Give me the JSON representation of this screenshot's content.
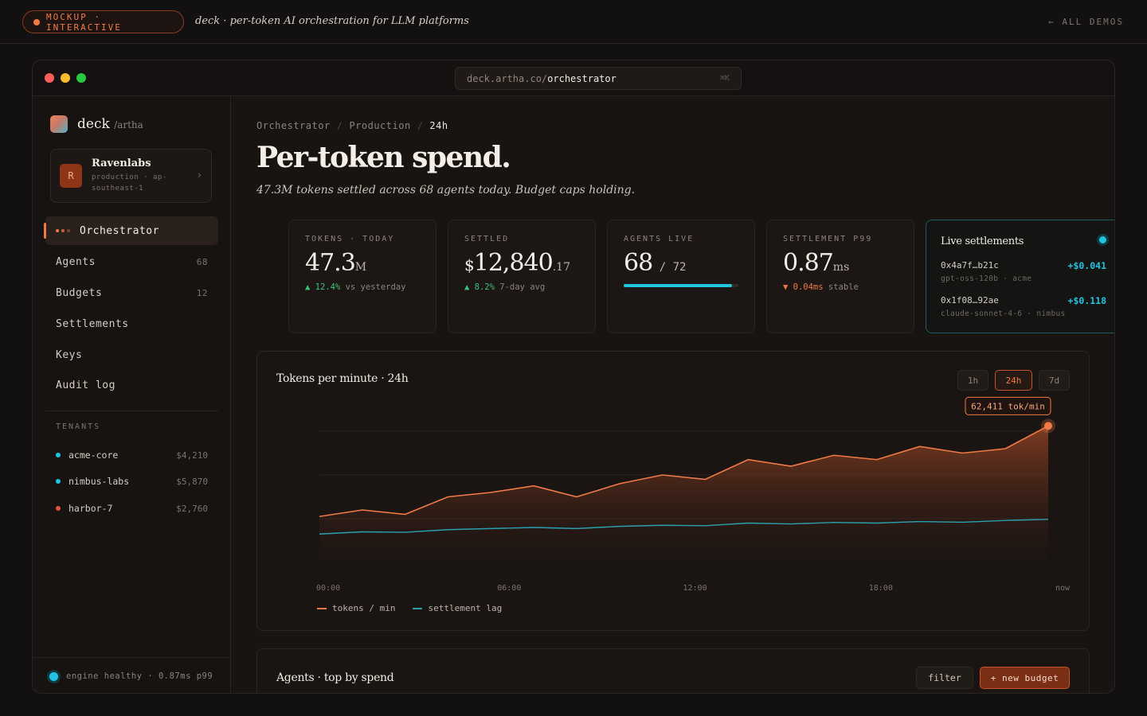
{
  "banner": {
    "pill_label": "MOCKUP · INTERACTIVE",
    "tagline": "deck · per-token AI orchestration for LLM platforms",
    "all_demos": "← ALL DEMOS"
  },
  "browser": {
    "url_host": "deck.artha.co/",
    "url_path": "orchestrator",
    "shortcut": "⌘K"
  },
  "sidebar": {
    "logo": "deck",
    "logo_sub": "/artha",
    "tenant": {
      "initial": "R",
      "name": "Ravenlabs",
      "env": "production · ap-southeast-1"
    },
    "nav": [
      {
        "label": "Orchestrator",
        "count": ""
      },
      {
        "label": "Agents",
        "count": "68"
      },
      {
        "label": "Budgets",
        "count": "12"
      },
      {
        "label": "Settlements",
        "count": ""
      },
      {
        "label": "Keys",
        "count": ""
      },
      {
        "label": "Audit log",
        "count": ""
      }
    ],
    "tenants_heading": "TENANTS",
    "tenants": [
      {
        "name": "acme-core",
        "amount": "$4,210",
        "color": "#22c3e0"
      },
      {
        "name": "nimbus-labs",
        "amount": "$5,870",
        "color": "#22c3e0"
      },
      {
        "name": "harbor-7",
        "amount": "$2,760",
        "color": "#e0553a"
      }
    ],
    "footer": "engine healthy · 0.87ms p99"
  },
  "main": {
    "breadcrumb": [
      "Orchestrator",
      "Production",
      "24h"
    ],
    "title": "Per-token spend.",
    "subtitle": "47.3M tokens settled across 68 agents today. Budget caps holding.",
    "cards": {
      "tokens": {
        "label": "TOKENS · TODAY",
        "value": "47.3",
        "unit": "M",
        "delta": "▲ 12.4%",
        "delta_note": "vs yesterday"
      },
      "settled": {
        "label": "SETTLED",
        "currency": "$",
        "value": "12,840",
        "cents": ".17",
        "delta": "▲ 8.2%",
        "delta_note": "7-day avg"
      },
      "agents": {
        "label": "AGENTS LIVE",
        "value": "68",
        "total": "/ 72",
        "fill": 0.944
      },
      "p99": {
        "label": "SETTLEMENT P99",
        "value": "0.87",
        "unit": "ms",
        "delta": "▼ 0.04ms",
        "delta_note": "stable"
      }
    },
    "live": {
      "title": "Live settlements",
      "rows": [
        {
          "hash": "0x4a7f…b21c",
          "amount": "+$0.041",
          "meta": "gpt-oss-120b · acme"
        },
        {
          "hash": "0x1f08…92ae",
          "amount": "+$0.118",
          "meta": "claude-sonnet-4-6 · nimbus"
        }
      ]
    },
    "chart": {
      "title": "Tokens per minute · 24h",
      "ranges": [
        "1h",
        "24h",
        "7d"
      ],
      "active_range": "24h",
      "tooltip": "62,411 tok/min",
      "legend": [
        "tokens / min",
        "settlement lag"
      ]
    },
    "agents_section": {
      "title": "Agents · top by spend",
      "filter_label": "filter",
      "new_budget_label": "+ new budget"
    }
  },
  "colors": {
    "accent": "#f07a45",
    "cyan": "#22c3e0",
    "background": "#121010"
  },
  "chart_data": {
    "type": "area",
    "title": "Tokens per minute · 24h",
    "x_ticks": [
      "00:00",
      "06:00",
      "12:00",
      "18:00",
      "now"
    ],
    "ylim": [
      0,
      80000
    ],
    "grid": true,
    "legend_position": "bottom-left",
    "series": [
      {
        "name": "tokens / min",
        "color": "#f07a45",
        "values": [
          21000,
          24000,
          22000,
          30000,
          32000,
          35000,
          30000,
          36000,
          40000,
          38000,
          47000,
          44000,
          49000,
          47000,
          53000,
          50000,
          52000,
          62411
        ]
      },
      {
        "name": "settlement lag",
        "color": "#2a9fae",
        "values": [
          13000,
          14000,
          13800,
          15000,
          15500,
          16000,
          15500,
          16500,
          17000,
          16800,
          18000,
          17600,
          18300,
          18000,
          18700,
          18400,
          19200,
          19700
        ]
      }
    ],
    "annotation": "62,411 tok/min"
  }
}
